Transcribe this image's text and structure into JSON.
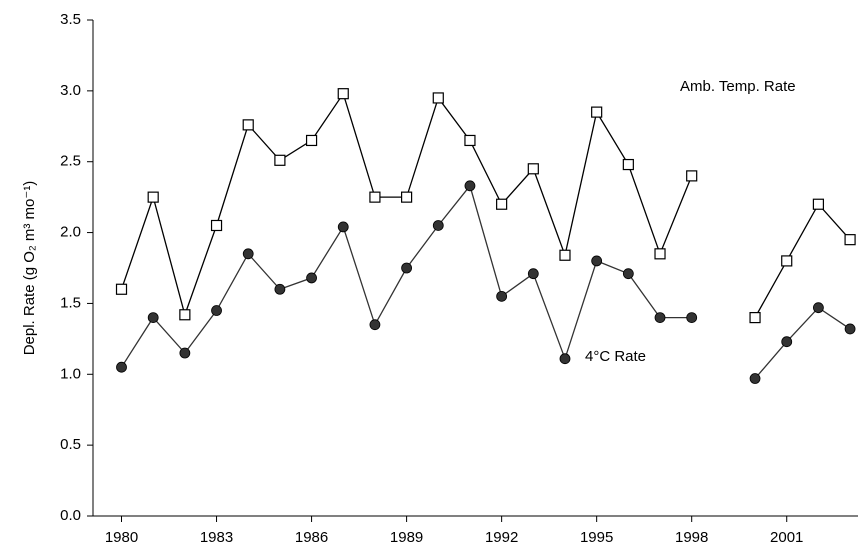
{
  "chart_data": {
    "type": "line",
    "y_label": "Depl. Rate (g O₂ m³ mo⁻¹)",
    "x": [
      1980,
      1981,
      1982,
      1983,
      1984,
      1985,
      1986,
      1987,
      1988,
      1989,
      1990,
      1991,
      1992,
      1993,
      1994,
      1995,
      1996,
      1997,
      1998,
      1999,
      2000,
      2001,
      2002,
      2003
    ],
    "series": [
      {
        "name": "Amb. Temp. Rate",
        "color": "#000000",
        "marker": "square",
        "values": [
          1.6,
          2.25,
          1.42,
          2.05,
          2.76,
          2.51,
          2.65,
          2.98,
          2.25,
          2.25,
          2.95,
          2.65,
          2.2,
          2.45,
          1.84,
          2.85,
          2.48,
          1.85,
          2.4,
          null,
          1.4,
          1.8,
          2.2,
          1.95
        ]
      },
      {
        "name": "4°C Rate",
        "color": "#333333",
        "marker": "circle",
        "values": [
          1.05,
          1.4,
          1.15,
          1.45,
          1.85,
          1.6,
          1.68,
          2.04,
          1.35,
          1.75,
          2.05,
          2.33,
          1.55,
          1.71,
          1.11,
          1.8,
          1.71,
          1.4,
          1.4,
          null,
          0.97,
          1.23,
          1.47,
          1.32
        ]
      }
    ],
    "xlim": [
      1979.1,
      2003.25
    ],
    "ylim": [
      0,
      3.5
    ],
    "xticks": [
      1980,
      1983,
      1986,
      1989,
      1992,
      1995,
      1998,
      2001
    ],
    "yticks": [
      {
        "value": 0,
        "label": "0.0"
      },
      0.5,
      {
        "value": 1,
        "label": "1.0"
      },
      1.5,
      {
        "value": 2,
        "label": "2.0"
      },
      2.5,
      {
        "value": 3,
        "label": "3.0"
      },
      3.5
    ],
    "grid": false
  }
}
